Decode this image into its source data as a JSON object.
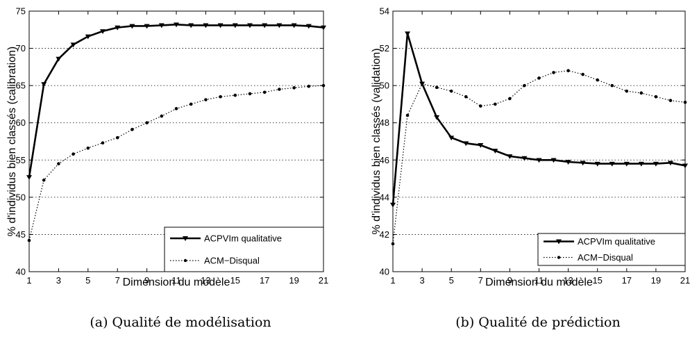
{
  "chart_data": [
    {
      "type": "line",
      "caption": "(a) Qualité de modélisation",
      "xlabel": "Dimension du modèle",
      "ylabel": "% d'individus bien classés (calibration)",
      "xlim": [
        1,
        21
      ],
      "ylim": [
        40,
        75
      ],
      "xticks": [
        1,
        3,
        5,
        7,
        9,
        11,
        13,
        15,
        17,
        19,
        21
      ],
      "yticks": [
        40,
        45,
        50,
        55,
        60,
        65,
        70,
        75
      ],
      "grid": "horizontal-dotted",
      "legend_position": "bottom-right",
      "x": [
        1,
        2,
        3,
        4,
        5,
        6,
        7,
        8,
        9,
        10,
        11,
        12,
        13,
        14,
        15,
        16,
        17,
        18,
        19,
        20,
        21
      ],
      "series": [
        {
          "name": "ACPVIm qualitative",
          "style": "solid-triangle",
          "color": "#000000",
          "values": [
            52.7,
            65.2,
            68.6,
            70.5,
            71.6,
            72.3,
            72.8,
            73.0,
            73.0,
            73.1,
            73.2,
            73.1,
            73.1,
            73.1,
            73.1,
            73.1,
            73.1,
            73.1,
            73.1,
            73.0,
            72.8
          ]
        },
        {
          "name": "ACM−Disqual",
          "style": "dotted-dot",
          "color": "#000000",
          "values": [
            44.2,
            52.3,
            54.5,
            55.8,
            56.6,
            57.3,
            58.0,
            59.1,
            60.0,
            60.9,
            61.9,
            62.5,
            63.1,
            63.5,
            63.7,
            63.9,
            64.1,
            64.5,
            64.7,
            64.9,
            65.0
          ]
        }
      ]
    },
    {
      "type": "line",
      "caption": "(b) Qualité de prédiction",
      "xlabel": "Dimension du modèle",
      "ylabel": "% d'individus bien classés (validation)",
      "xlim": [
        1,
        21
      ],
      "ylim": [
        40,
        54
      ],
      "xticks": [
        1,
        3,
        5,
        7,
        9,
        11,
        13,
        15,
        17,
        19,
        21
      ],
      "yticks": [
        40,
        42,
        44,
        46,
        48,
        50,
        52,
        54
      ],
      "grid": "horizontal-dotted",
      "legend_position": "bottom-right",
      "x": [
        1,
        2,
        3,
        4,
        5,
        6,
        7,
        8,
        9,
        10,
        11,
        12,
        13,
        14,
        15,
        16,
        17,
        18,
        19,
        20,
        21
      ],
      "series": [
        {
          "name": "ACPVIm qualitative",
          "style": "solid-triangle",
          "color": "#000000",
          "values": [
            43.6,
            52.8,
            50.1,
            48.3,
            47.2,
            46.9,
            46.8,
            46.5,
            46.2,
            46.1,
            46.0,
            46.0,
            45.9,
            45.85,
            45.8,
            45.8,
            45.8,
            45.8,
            45.8,
            45.85,
            45.7
          ]
        },
        {
          "name": "ACM−Disqual",
          "style": "dotted-dot",
          "color": "#000000",
          "values": [
            41.5,
            48.4,
            50.1,
            49.9,
            49.7,
            49.4,
            48.9,
            49.0,
            49.3,
            50.0,
            50.4,
            50.7,
            50.8,
            50.6,
            50.3,
            50.0,
            49.7,
            49.6,
            49.4,
            49.2,
            49.1
          ]
        }
      ]
    }
  ]
}
